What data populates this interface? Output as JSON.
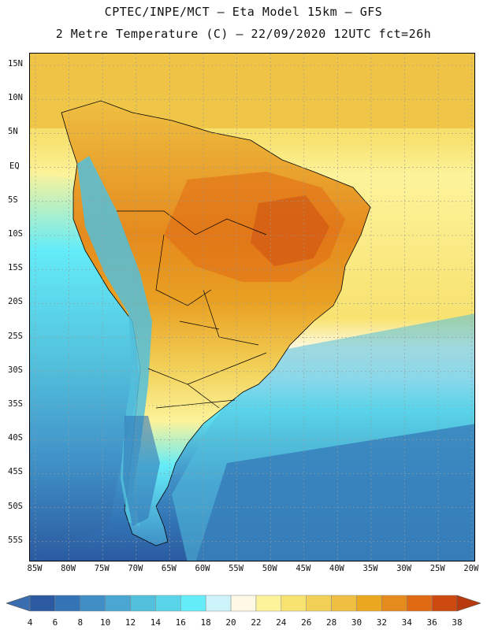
{
  "header": {
    "line1": "CPTEC/INPE/MCT –  Eta Model 15km – GFS",
    "line2": "2 Metre Temperature (C) – 22/09/2020 12UTC fct=26h"
  },
  "lat_labels": [
    "15N",
    "10N",
    "5N",
    "EQ",
    "5S",
    "10S",
    "15S",
    "20S",
    "25S",
    "30S",
    "35S",
    "40S",
    "45S",
    "50S",
    "55S"
  ],
  "lon_labels": [
    "85W",
    "80W",
    "75W",
    "70W",
    "65W",
    "60W",
    "55W",
    "50W",
    "45W",
    "40W",
    "35W",
    "30W",
    "25W",
    "20W"
  ],
  "colorbar": {
    "labels": [
      "4",
      "6",
      "8",
      "10",
      "12",
      "14",
      "16",
      "18",
      "20",
      "22",
      "24",
      "26",
      "28",
      "30",
      "32",
      "34",
      "36",
      "38"
    ],
    "colors": [
      "#2b5aa0",
      "#3274b5",
      "#3f8fc6",
      "#4aa6d2",
      "#52bfdc",
      "#5ad4e8",
      "#64ecf8",
      "#cdf4fb",
      "#fdf9e4",
      "#fcf39a",
      "#f8e270",
      "#f2d058",
      "#eebf40",
      "#eaa71f",
      "#e58a1d",
      "#e06a14",
      "#cc4a10"
    ],
    "left_cap_color": "#3a6db0",
    "right_cap_color": "#b83a0e"
  }
}
